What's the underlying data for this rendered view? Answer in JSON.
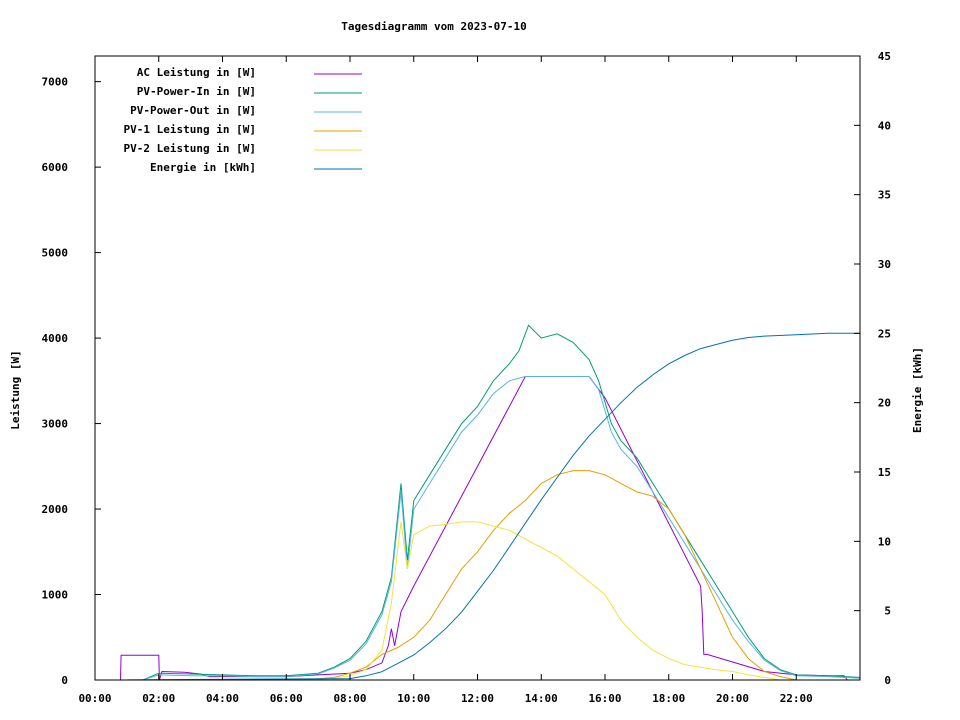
{
  "chart_data": {
    "type": "line",
    "title": "Tagesdiagramm vom 2023-07-10",
    "ylabel": "Leistung [W]",
    "y2label": "Energie [kWh]",
    "xlim": [
      0,
      24
    ],
    "ylim": [
      0,
      7300
    ],
    "y2lim": [
      0,
      45
    ],
    "x_ticks": [
      "00:00",
      "02:00",
      "04:00",
      "06:00",
      "08:00",
      "10:00",
      "12:00",
      "14:00",
      "16:00",
      "18:00",
      "20:00",
      "22:00"
    ],
    "y_ticks": [
      0,
      1000,
      2000,
      3000,
      4000,
      5000,
      6000,
      7000
    ],
    "y2_ticks": [
      0,
      5,
      10,
      15,
      20,
      25,
      30,
      35,
      40,
      45
    ],
    "legend_position": "top-left",
    "grid": false,
    "series": [
      {
        "name": "AC Leistung in [W]",
        "axis": "left",
        "color": "#9400d3",
        "points": [
          [
            0.0,
            0
          ],
          [
            0.8,
            0
          ],
          [
            0.82,
            290
          ],
          [
            2.0,
            290
          ],
          [
            2.02,
            0
          ],
          [
            2.1,
            100
          ],
          [
            2.8,
            90
          ],
          [
            3.3,
            70
          ],
          [
            3.6,
            40
          ],
          [
            4.0,
            40
          ],
          [
            5.0,
            40
          ],
          [
            6.0,
            40
          ],
          [
            7.0,
            60
          ],
          [
            8.0,
            80
          ],
          [
            8.5,
            120
          ],
          [
            9.0,
            200
          ],
          [
            9.2,
            400
          ],
          [
            9.3,
            600
          ],
          [
            9.4,
            400
          ],
          [
            9.6,
            800
          ],
          [
            10.0,
            1100
          ],
          [
            13.5,
            3550
          ],
          [
            15.5,
            3550
          ],
          [
            16.0,
            3300
          ],
          [
            19.0,
            1100
          ],
          [
            19.05,
            800
          ],
          [
            19.1,
            300
          ],
          [
            19.2,
            300
          ],
          [
            21.0,
            100
          ],
          [
            22.0,
            60
          ],
          [
            23.0,
            50
          ],
          [
            23.5,
            50
          ],
          [
            23.6,
            0
          ]
        ]
      },
      {
        "name": "PV-Power-In in [W]",
        "axis": "left",
        "color": "#009e73",
        "points": [
          [
            0.0,
            0
          ],
          [
            1.5,
            0
          ],
          [
            2.0,
            80
          ],
          [
            3.0,
            70
          ],
          [
            4.0,
            60
          ],
          [
            5.0,
            50
          ],
          [
            6.0,
            50
          ],
          [
            7.0,
            80
          ],
          [
            7.5,
            150
          ],
          [
            8.0,
            250
          ],
          [
            8.5,
            450
          ],
          [
            9.0,
            800
          ],
          [
            9.3,
            1200
          ],
          [
            9.6,
            2300
          ],
          [
            9.8,
            1400
          ],
          [
            10.0,
            2100
          ],
          [
            10.5,
            2400
          ],
          [
            11.0,
            2700
          ],
          [
            11.5,
            3000
          ],
          [
            12.0,
            3200
          ],
          [
            12.5,
            3500
          ],
          [
            13.0,
            3700
          ],
          [
            13.3,
            3850
          ],
          [
            13.6,
            4150
          ],
          [
            14.0,
            4000
          ],
          [
            14.5,
            4050
          ],
          [
            15.0,
            3950
          ],
          [
            15.5,
            3750
          ],
          [
            15.8,
            3500
          ],
          [
            16.2,
            3000
          ],
          [
            16.5,
            2800
          ],
          [
            17.0,
            2600
          ],
          [
            17.5,
            2300
          ],
          [
            18.0,
            2000
          ],
          [
            18.5,
            1700
          ],
          [
            19.0,
            1400
          ],
          [
            19.5,
            1100
          ],
          [
            20.0,
            800
          ],
          [
            20.5,
            500
          ],
          [
            21.0,
            250
          ],
          [
            21.5,
            120
          ],
          [
            22.0,
            60
          ],
          [
            23.0,
            50
          ],
          [
            24.0,
            30
          ]
        ]
      },
      {
        "name": "PV-Power-Out in [W]",
        "axis": "left",
        "color": "#56b4e9",
        "points": [
          [
            0.0,
            0
          ],
          [
            1.5,
            0
          ],
          [
            2.0,
            60
          ],
          [
            3.0,
            50
          ],
          [
            4.0,
            50
          ],
          [
            5.0,
            40
          ],
          [
            6.0,
            40
          ],
          [
            7.0,
            70
          ],
          [
            7.5,
            140
          ],
          [
            8.0,
            230
          ],
          [
            8.5,
            420
          ],
          [
            9.0,
            760
          ],
          [
            9.3,
            1150
          ],
          [
            9.6,
            2200
          ],
          [
            9.8,
            1300
          ],
          [
            10.0,
            2000
          ],
          [
            10.5,
            2300
          ],
          [
            11.0,
            2600
          ],
          [
            11.5,
            2900
          ],
          [
            12.0,
            3100
          ],
          [
            12.5,
            3350
          ],
          [
            13.0,
            3500
          ],
          [
            13.5,
            3550
          ],
          [
            15.5,
            3550
          ],
          [
            15.8,
            3400
          ],
          [
            16.2,
            2900
          ],
          [
            16.5,
            2700
          ],
          [
            17.0,
            2500
          ],
          [
            17.5,
            2200
          ],
          [
            18.0,
            1900
          ],
          [
            18.5,
            1600
          ],
          [
            19.0,
            1300
          ],
          [
            19.5,
            1000
          ],
          [
            20.0,
            700
          ],
          [
            20.5,
            450
          ],
          [
            21.0,
            230
          ],
          [
            21.5,
            110
          ],
          [
            22.0,
            50
          ],
          [
            23.0,
            40
          ],
          [
            24.0,
            20
          ]
        ]
      },
      {
        "name": "PV-1 Leistung in [W]",
        "axis": "left",
        "color": "#e69f00",
        "points": [
          [
            0.0,
            0
          ],
          [
            6.5,
            0
          ],
          [
            7.5,
            30
          ],
          [
            8.0,
            80
          ],
          [
            8.5,
            150
          ],
          [
            9.0,
            300
          ],
          [
            9.5,
            380
          ],
          [
            10.0,
            500
          ],
          [
            10.5,
            700
          ],
          [
            11.0,
            1000
          ],
          [
            11.5,
            1300
          ],
          [
            12.0,
            1500
          ],
          [
            12.5,
            1750
          ],
          [
            13.0,
            1950
          ],
          [
            13.5,
            2100
          ],
          [
            14.0,
            2300
          ],
          [
            14.5,
            2400
          ],
          [
            15.0,
            2450
          ],
          [
            15.5,
            2450
          ],
          [
            16.0,
            2400
          ],
          [
            16.5,
            2300
          ],
          [
            17.0,
            2200
          ],
          [
            17.5,
            2150
          ],
          [
            18.0,
            2000
          ],
          [
            18.5,
            1700
          ],
          [
            19.0,
            1300
          ],
          [
            19.5,
            900
          ],
          [
            20.0,
            500
          ],
          [
            20.5,
            250
          ],
          [
            21.0,
            100
          ],
          [
            21.5,
            40
          ],
          [
            22.0,
            0
          ],
          [
            24.0,
            0
          ]
        ]
      },
      {
        "name": "PV-2 Leistung in [W]",
        "axis": "left",
        "color": "#f0e442",
        "points": [
          [
            0.0,
            0
          ],
          [
            6.5,
            0
          ],
          [
            7.5,
            20
          ],
          [
            8.0,
            50
          ],
          [
            8.5,
            120
          ],
          [
            9.0,
            350
          ],
          [
            9.3,
            900
          ],
          [
            9.6,
            1850
          ],
          [
            9.8,
            1300
          ],
          [
            10.0,
            1700
          ],
          [
            10.5,
            1800
          ],
          [
            11.0,
            1820
          ],
          [
            11.5,
            1850
          ],
          [
            12.0,
            1850
          ],
          [
            12.5,
            1800
          ],
          [
            13.0,
            1750
          ],
          [
            13.5,
            1650
          ],
          [
            14.0,
            1550
          ],
          [
            14.5,
            1450
          ],
          [
            15.0,
            1300
          ],
          [
            15.5,
            1150
          ],
          [
            16.0,
            1000
          ],
          [
            16.5,
            700
          ],
          [
            17.0,
            500
          ],
          [
            17.5,
            350
          ],
          [
            18.0,
            250
          ],
          [
            18.5,
            180
          ],
          [
            19.0,
            150
          ],
          [
            19.5,
            120
          ],
          [
            20.0,
            100
          ],
          [
            20.5,
            60
          ],
          [
            21.0,
            30
          ],
          [
            21.5,
            0
          ],
          [
            24.0,
            0
          ]
        ]
      },
      {
        "name": "Energie in [kWh]",
        "axis": "right",
        "color": "#0072b2",
        "points": [
          [
            0.0,
            0
          ],
          [
            8.0,
            0.1
          ],
          [
            8.5,
            0.3
          ],
          [
            9.0,
            0.6
          ],
          [
            9.5,
            1.2
          ],
          [
            10.0,
            1.8
          ],
          [
            10.5,
            2.7
          ],
          [
            11.0,
            3.7
          ],
          [
            11.5,
            4.9
          ],
          [
            12.0,
            6.4
          ],
          [
            12.5,
            7.9
          ],
          [
            13.0,
            9.6
          ],
          [
            13.5,
            11.3
          ],
          [
            14.0,
            13.0
          ],
          [
            14.5,
            14.6
          ],
          [
            15.0,
            16.2
          ],
          [
            15.5,
            17.6
          ],
          [
            16.0,
            18.8
          ],
          [
            16.5,
            20.0
          ],
          [
            17.0,
            21.1
          ],
          [
            17.5,
            22.0
          ],
          [
            18.0,
            22.8
          ],
          [
            18.5,
            23.4
          ],
          [
            19.0,
            23.9
          ],
          [
            19.5,
            24.2
          ],
          [
            20.0,
            24.5
          ],
          [
            20.5,
            24.7
          ],
          [
            21.0,
            24.8
          ],
          [
            22.0,
            24.9
          ],
          [
            23.0,
            25.0
          ],
          [
            24.0,
            25.0
          ]
        ]
      }
    ]
  }
}
